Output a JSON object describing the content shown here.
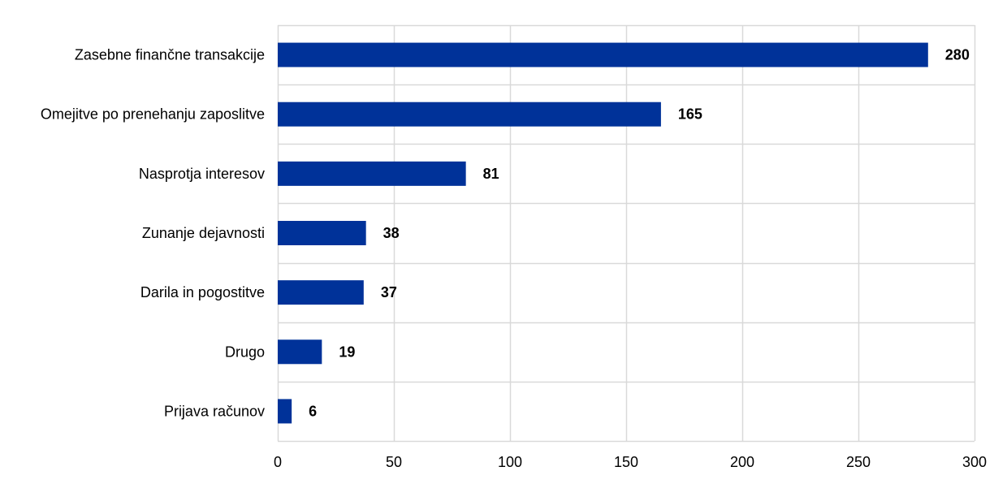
{
  "chart_data": {
    "type": "bar",
    "orientation": "horizontal",
    "title": "",
    "xlabel": "",
    "ylabel": "",
    "categories": [
      "Zasebne finančne transakcije",
      "Omejitve po prenehanju zaposlitve",
      "Nasprotja interesov",
      "Zunanje dejavnosti",
      "Darila in pogostitve",
      "Drugo",
      "Prijava računov"
    ],
    "values": [
      280,
      165,
      81,
      38,
      37,
      19,
      6
    ],
    "data_labels": [
      "280",
      "165",
      "81",
      "38",
      "37",
      "19",
      "6"
    ],
    "xlim": [
      0,
      300
    ],
    "x_ticks": [
      0,
      50,
      100,
      150,
      200,
      250,
      300
    ],
    "x_tick_labels": [
      "0",
      "50",
      "100",
      "150",
      "200",
      "250",
      "300"
    ],
    "grid": true,
    "legend": "none",
    "colors": {
      "bar": "#003299",
      "grid": "#d9d9d9",
      "text": "#000000"
    }
  }
}
